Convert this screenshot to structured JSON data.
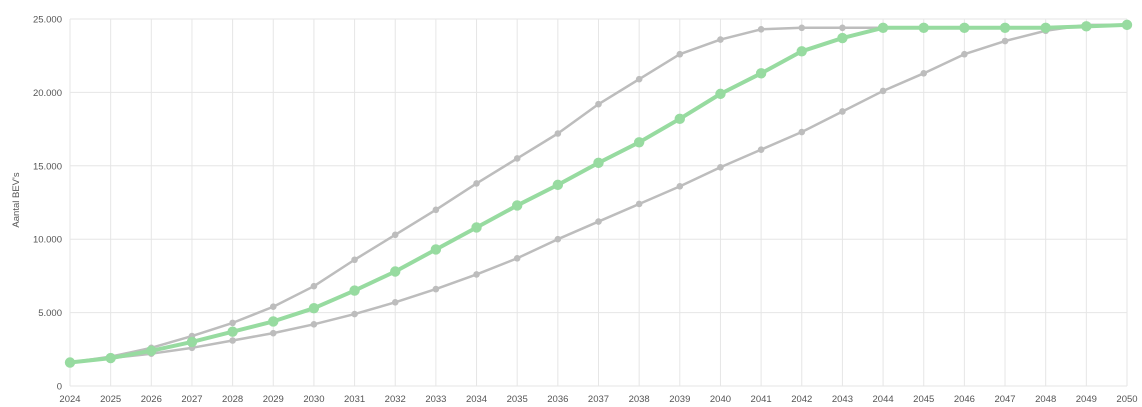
{
  "chart_data": {
    "type": "line",
    "title": "",
    "xlabel": "",
    "ylabel": "Aantal BEV's",
    "grid": true,
    "legend": "none",
    "x": [
      2024,
      2025,
      2026,
      2027,
      2028,
      2029,
      2030,
      2031,
      2032,
      2033,
      2034,
      2035,
      2036,
      2037,
      2038,
      2039,
      2040,
      2041,
      2042,
      2043,
      2044,
      2045,
      2046,
      2047,
      2048,
      2049,
      2050
    ],
    "xlim": [
      2024,
      2050
    ],
    "ylim": [
      0,
      25000
    ],
    "y_ticks": [
      0,
      5000,
      10000,
      15000,
      20000,
      25000
    ],
    "y_tick_labels": [
      "0",
      "5.000",
      "10.000",
      "15.000",
      "20.000",
      "25.000"
    ],
    "series": [
      {
        "color": "#bdbdbd",
        "values": [
          1600,
          2000,
          2600,
          3400,
          4300,
          5400,
          6800,
          8600,
          10300,
          12000,
          13800,
          15500,
          17200,
          19200,
          20900,
          22600,
          23600,
          24300,
          24400,
          24400,
          24400,
          24400,
          24400,
          24400,
          24400,
          24500,
          24600
        ]
      },
      {
        "color": "#97dba0",
        "emphasis": true,
        "values": [
          1600,
          1900,
          2400,
          3000,
          3700,
          4400,
          5300,
          6500,
          7800,
          9300,
          10800,
          12300,
          13700,
          15200,
          16600,
          18200,
          19900,
          21300,
          22800,
          23700,
          24400,
          24400,
          24400,
          24400,
          24400,
          24500,
          24600
        ]
      },
      {
        "color": "#bdbdbd",
        "values": [
          1600,
          1900,
          2200,
          2600,
          3100,
          3600,
          4200,
          4900,
          5700,
          6600,
          7600,
          8700,
          10000,
          11200,
          12400,
          13600,
          14900,
          16100,
          17300,
          18700,
          20100,
          21300,
          22600,
          23500,
          24200,
          24600,
          24600
        ]
      }
    ]
  }
}
